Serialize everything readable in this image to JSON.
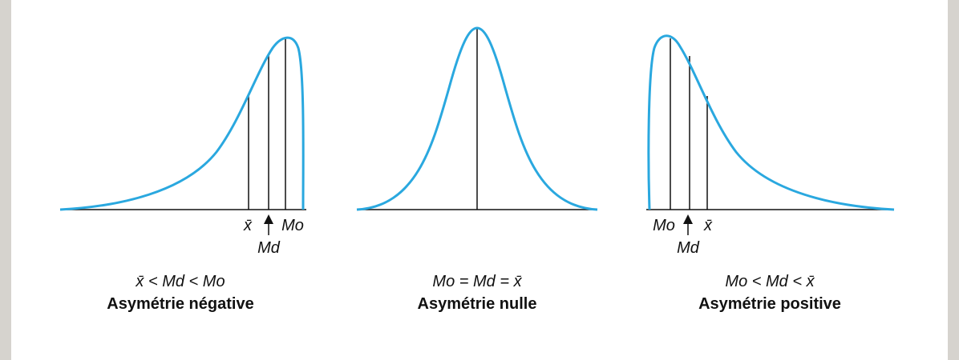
{
  "panels": [
    {
      "labels": {
        "mean": "x̄",
        "median": "Md",
        "mode": "Mo"
      },
      "relation": "x̄ < Md < Mo",
      "title": "Asymétrie négative"
    },
    {
      "relation": "Mo = Md = x̄",
      "title": "Asymétrie nulle"
    },
    {
      "labels": {
        "mean": "x̄",
        "median": "Md",
        "mode": "Mo"
      },
      "relation": "Mo < Md < x̄",
      "title": "Asymétrie positive"
    }
  ]
}
